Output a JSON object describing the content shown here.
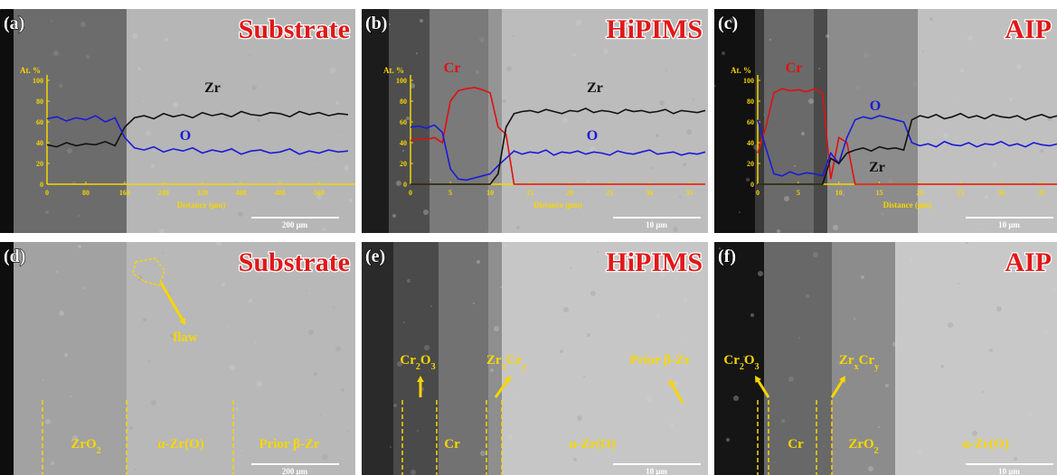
{
  "chart_data": [
    {
      "type": "line",
      "y_label": "At. %",
      "x_label": "Distance (μm)",
      "xlim": [
        0,
        635
      ],
      "ylim": [
        0,
        100
      ],
      "xticks": [
        0,
        80,
        160,
        240,
        320,
        400,
        480,
        560
      ],
      "yticks": [
        0,
        20,
        40,
        60,
        80,
        100
      ],
      "x": [
        0,
        20,
        40,
        60,
        80,
        100,
        120,
        140,
        160,
        180,
        200,
        220,
        240,
        260,
        280,
        300,
        320,
        340,
        360,
        380,
        400,
        420,
        440,
        460,
        480,
        500,
        520,
        540,
        560,
        580,
        600,
        620
      ],
      "series": [
        {
          "name": "Zr",
          "color": "#111111",
          "values": [
            38,
            36,
            40,
            37,
            39,
            38,
            41,
            37,
            55,
            64,
            66,
            63,
            68,
            65,
            67,
            64,
            69,
            66,
            68,
            65,
            70,
            67,
            66,
            69,
            68,
            65,
            70,
            67,
            69,
            66,
            68,
            67
          ]
        },
        {
          "name": "O",
          "color": "#1a1ad8",
          "values": [
            63,
            65,
            61,
            64,
            62,
            66,
            60,
            64,
            45,
            35,
            33,
            36,
            31,
            34,
            32,
            35,
            30,
            33,
            31,
            34,
            29,
            32,
            33,
            30,
            31,
            34,
            29,
            32,
            30,
            33,
            31,
            32
          ]
        }
      ]
    },
    {
      "type": "line",
      "y_label": "At. %",
      "x_label": "Distance (μm)",
      "xlim": [
        0,
        37
      ],
      "ylim": [
        0,
        100
      ],
      "xticks": [
        0,
        5,
        10,
        15,
        20,
        25,
        30,
        35
      ],
      "yticks": [
        0,
        20,
        40,
        60,
        80,
        100
      ],
      "x": [
        0,
        1,
        2,
        3,
        4,
        5,
        6,
        7,
        8,
        9,
        10,
        11,
        12,
        13,
        14,
        15,
        16,
        17,
        18,
        19,
        20,
        21,
        22,
        23,
        24,
        25,
        26,
        27,
        28,
        29,
        30,
        31,
        32,
        33,
        34,
        35,
        36,
        37
      ],
      "series": [
        {
          "name": "Cr",
          "color": "#e01010",
          "values": [
            42,
            44,
            43,
            45,
            40,
            80,
            90,
            92,
            93,
            91,
            88,
            55,
            48,
            0,
            0,
            0,
            0,
            0,
            0,
            0,
            0,
            0,
            0,
            0,
            0,
            0,
            0,
            0,
            0,
            0,
            0,
            0,
            0,
            0,
            0,
            0,
            0,
            0
          ]
        },
        {
          "name": "O",
          "color": "#1a1ad8",
          "values": [
            55,
            56,
            54,
            57,
            50,
            15,
            5,
            4,
            6,
            8,
            10,
            18,
            25,
            32,
            29,
            31,
            30,
            33,
            28,
            31,
            30,
            32,
            29,
            31,
            30,
            28,
            32,
            30,
            29,
            31,
            33,
            29,
            30,
            31,
            28,
            30,
            29,
            31
          ]
        },
        {
          "name": "Zr",
          "color": "#111111",
          "values": [
            0,
            0,
            0,
            0,
            0,
            0,
            0,
            0,
            0,
            0,
            0,
            10,
            55,
            68,
            70,
            71,
            69,
            72,
            70,
            68,
            71,
            70,
            73,
            69,
            71,
            70,
            68,
            72,
            70,
            71,
            69,
            70,
            72,
            68,
            71,
            70,
            69,
            71
          ]
        }
      ]
    },
    {
      "type": "line",
      "y_label": "At. %",
      "x_label": "Distance (μm)",
      "xlim": [
        0,
        37
      ],
      "ylim": [
        0,
        100
      ],
      "xticks": [
        0,
        5,
        10,
        15,
        20,
        25,
        30,
        35
      ],
      "yticks": [
        0,
        20,
        40,
        60,
        80,
        100
      ],
      "x": [
        0,
        1,
        2,
        3,
        4,
        5,
        6,
        7,
        8,
        9,
        10,
        11,
        12,
        13,
        14,
        15,
        16,
        17,
        18,
        19,
        20,
        21,
        22,
        23,
        24,
        25,
        26,
        27,
        28,
        29,
        30,
        31,
        32,
        33,
        34,
        35,
        36,
        37
      ],
      "series": [
        {
          "name": "Cr",
          "color": "#e01010",
          "values": [
            30,
            55,
            88,
            92,
            90,
            91,
            89,
            92,
            88,
            5,
            45,
            40,
            0,
            0,
            0,
            0,
            0,
            0,
            0,
            0,
            0,
            0,
            0,
            0,
            0,
            0,
            0,
            0,
            0,
            0,
            0,
            0,
            0,
            0,
            0,
            0,
            0,
            0
          ]
        },
        {
          "name": "O",
          "color": "#1a1ad8",
          "values": [
            62,
            35,
            10,
            8,
            12,
            9,
            11,
            10,
            8,
            30,
            20,
            45,
            62,
            65,
            63,
            66,
            64,
            62,
            60,
            40,
            37,
            39,
            36,
            41,
            38,
            37,
            40,
            36,
            39,
            38,
            41,
            37,
            39,
            36,
            40,
            38,
            37,
            39
          ]
        },
        {
          "name": "Zr",
          "color": "#111111",
          "values": [
            0,
            0,
            0,
            0,
            0,
            0,
            0,
            0,
            0,
            25,
            20,
            30,
            33,
            35,
            32,
            36,
            34,
            35,
            33,
            62,
            66,
            64,
            67,
            63,
            65,
            68,
            64,
            66,
            63,
            67,
            65,
            64,
            66,
            62,
            65,
            67,
            64,
            66
          ]
        }
      ]
    }
  ],
  "panels": [
    {
      "label": "(a)",
      "title": "Substrate",
      "scale_bar": "200 μm",
      "annotations": []
    },
    {
      "label": "(b)",
      "title": "HiPIMS",
      "scale_bar": "10 μm",
      "annotations": []
    },
    {
      "label": "(c)",
      "title": "AIP",
      "scale_bar": "10 μm",
      "annotations": []
    },
    {
      "label": "(d)",
      "title": "Substrate",
      "scale_bar": "200 μm",
      "annotations": [
        {
          "segments": [
            "flaw"
          ]
        },
        {
          "segments": [
            "ZrO",
            "2"
          ]
        },
        {
          "segments": [
            "α-Zr(O)"
          ]
        },
        {
          "segments": [
            "Prior β-Zr"
          ]
        }
      ]
    },
    {
      "label": "(e)",
      "title": "HiPIMS",
      "scale_bar": "10 μm",
      "annotations": [
        {
          "segments": [
            "Cr",
            "2",
            "O",
            "3"
          ]
        },
        {
          "segments": [
            "Zr",
            "x",
            "Cr",
            "y"
          ]
        },
        {
          "segments": [
            "Prior β-Zr"
          ]
        },
        {
          "segments": [
            "Cr"
          ]
        },
        {
          "segments": [
            "α-Zr(O)"
          ]
        }
      ]
    },
    {
      "label": "(f)",
      "title": "AIP",
      "scale_bar": "10 μm",
      "annotations": [
        {
          "segments": [
            "Cr",
            "2",
            "O",
            "3"
          ]
        },
        {
          "segments": [
            "Zr",
            "x",
            "Cr",
            "y"
          ]
        },
        {
          "segments": [
            "Cr"
          ]
        },
        {
          "segments": [
            "ZrO",
            "2"
          ]
        },
        {
          "segments": [
            "α-Zr(O)"
          ]
        }
      ]
    }
  ]
}
